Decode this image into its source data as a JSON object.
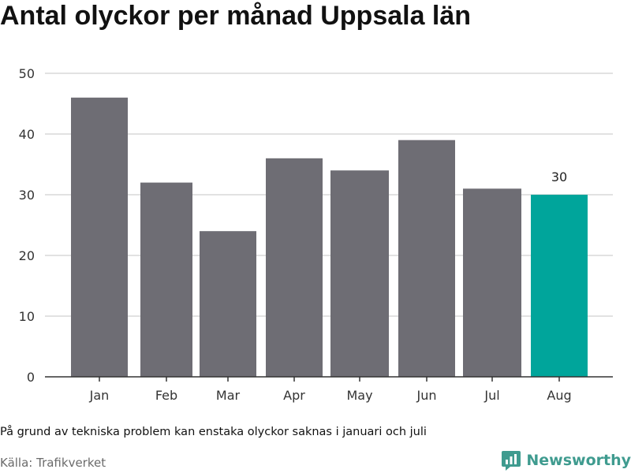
{
  "chart_data": {
    "type": "bar",
    "title": "Antal olyckor per månad Uppsala län",
    "categories": [
      "Jan",
      "Feb",
      "Mar",
      "Apr",
      "May",
      "Jun",
      "Jul",
      "Aug"
    ],
    "values": [
      46,
      32,
      24,
      36,
      34,
      39,
      31,
      30
    ],
    "highlight_index": 7,
    "highlight_label": "30",
    "ylim": [
      0,
      50
    ],
    "yticks": [
      0,
      10,
      20,
      30,
      40,
      50
    ],
    "grid": true,
    "colors": {
      "bar": "#6e6d74",
      "highlight": "#00a59b",
      "grid": "#d9d9d9",
      "axis": "#333333"
    }
  },
  "note": "På grund av tekniska problem kan enstaka olyckor saknas i januari och juli",
  "source": "Källa: Trafikverket",
  "brand": {
    "name": "Newsworthy",
    "icon": "newsworthy-logo-icon",
    "color": "#3f9b8f"
  }
}
